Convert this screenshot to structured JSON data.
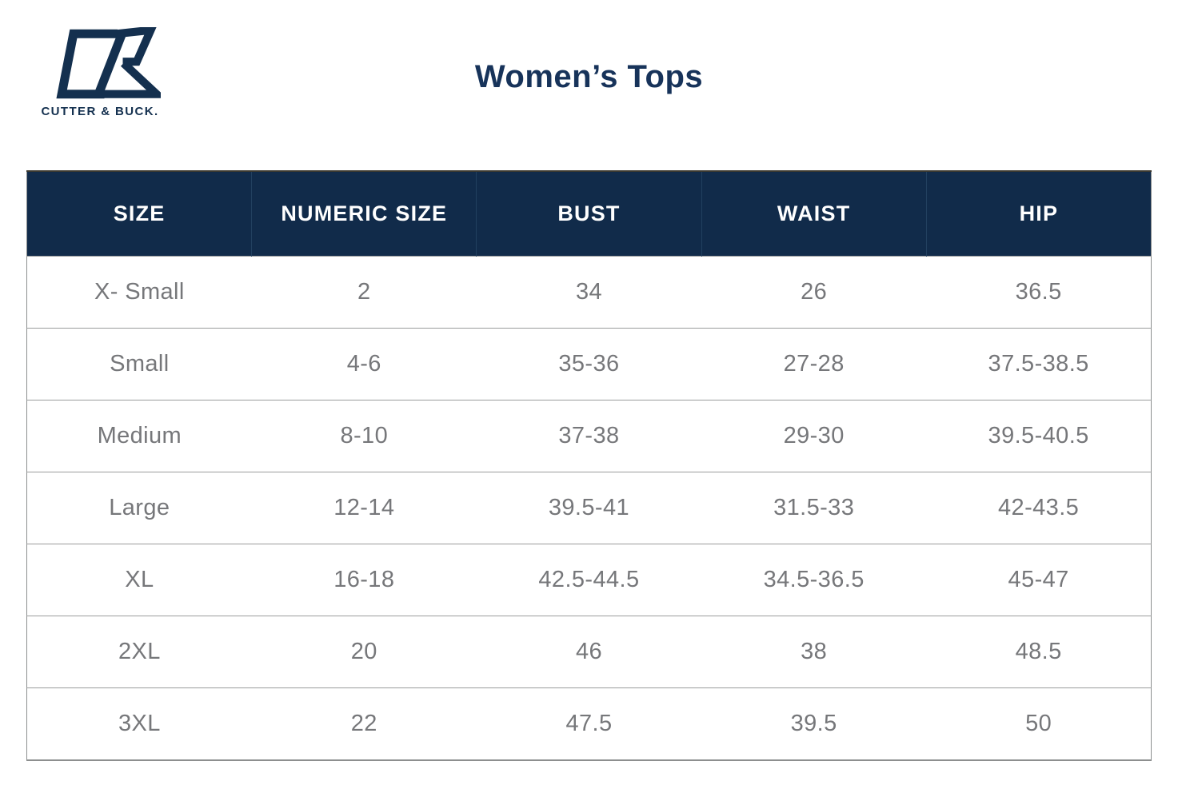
{
  "brand": {
    "wordmark": "CUTTER & BUCK."
  },
  "header": {
    "title": "Women’s Tops"
  },
  "colors": {
    "navy_header_bg": "#112b4a",
    "navy_logo": "#14304f",
    "navy_title": "#17335a",
    "body_text_gray": "#76777a",
    "row_border_gray": "#9a9c9c",
    "outer_border_gray": "#8d8f8f"
  },
  "chart_data": {
    "type": "table",
    "title": "Women’s Tops",
    "columns": [
      "SIZE",
      "NUMERIC SIZE",
      "BUST",
      "WAIST",
      "HIP"
    ],
    "rows": [
      [
        "X- Small",
        "2",
        "34",
        "26",
        "36.5"
      ],
      [
        "Small",
        "4-6",
        "35-36",
        "27-28",
        "37.5-38.5"
      ],
      [
        "Medium",
        "8-10",
        "37-38",
        "29-30",
        "39.5-40.5"
      ],
      [
        "Large",
        "12-14",
        "39.5-41",
        "31.5-33",
        "42-43.5"
      ],
      [
        "XL",
        "16-18",
        "42.5-44.5",
        "34.5-36.5",
        "45-47"
      ],
      [
        "2XL",
        "20",
        "46",
        "38",
        "48.5"
      ],
      [
        "3XL",
        "22",
        "47.5",
        "39.5",
        "50"
      ]
    ]
  }
}
